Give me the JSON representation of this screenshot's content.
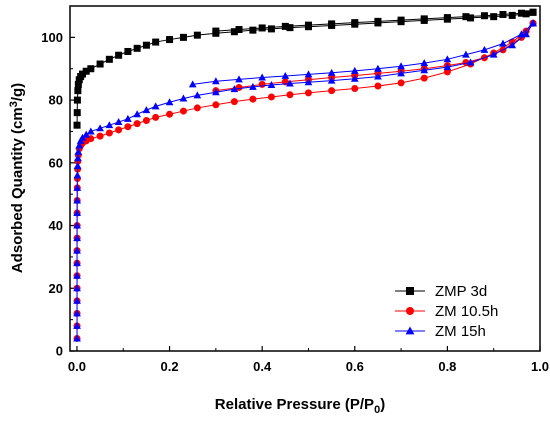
{
  "chart_data": {
    "type": "scatter",
    "title": "",
    "xlabel": "Relative Pressure (P/P",
    "xlabel_sub": "0",
    "xlabel_end": ")",
    "ylabel": "Adsorbed Quantity (cm",
    "ylabel_sup": "3",
    "ylabel_end": "/g)",
    "xlim": [
      -0.015,
      1.0
    ],
    "ylim": [
      0,
      110
    ],
    "xticks": [
      0.0,
      0.2,
      0.4,
      0.6,
      0.8,
      1.0
    ],
    "xtick_labels": [
      "0.0",
      "0.2",
      "0.4",
      "0.6",
      "0.8",
      "1.0"
    ],
    "yticks": [
      0,
      20,
      40,
      60,
      80,
      100
    ],
    "ytick_labels": [
      "0",
      "20",
      "40",
      "60",
      "80",
      "100"
    ],
    "grid": false,
    "legend_position": "bottom-right",
    "series": [
      {
        "name": "ZMP 3d",
        "color": "#000000",
        "marker": "square",
        "adsorption": [
          [
            0.0002,
            72
          ],
          [
            0.0006,
            76
          ],
          [
            0.001,
            80
          ],
          [
            0.002,
            83
          ],
          [
            0.003,
            85
          ],
          [
            0.005,
            86.5
          ],
          [
            0.008,
            87.5
          ],
          [
            0.012,
            88.3
          ],
          [
            0.02,
            89.2
          ],
          [
            0.03,
            90
          ],
          [
            0.05,
            91.5
          ],
          [
            0.07,
            93
          ],
          [
            0.09,
            94.3
          ],
          [
            0.11,
            95.5
          ],
          [
            0.13,
            96.5
          ],
          [
            0.15,
            97.5
          ],
          [
            0.17,
            98.5
          ],
          [
            0.2,
            99.3
          ],
          [
            0.23,
            100
          ],
          [
            0.26,
            100.7
          ],
          [
            0.3,
            101.3
          ],
          [
            0.34,
            101.8
          ],
          [
            0.38,
            102.3
          ],
          [
            0.42,
            102.7
          ],
          [
            0.46,
            103.1
          ],
          [
            0.5,
            103.4
          ],
          [
            0.55,
            103.8
          ],
          [
            0.6,
            104.2
          ],
          [
            0.65,
            104.6
          ],
          [
            0.7,
            105
          ],
          [
            0.75,
            105.4
          ],
          [
            0.8,
            105.8
          ],
          [
            0.85,
            106.2
          ],
          [
            0.9,
            106.6
          ],
          [
            0.94,
            107
          ],
          [
            0.97,
            107.5
          ],
          [
            0.985,
            108
          ]
        ],
        "desorption": [
          [
            0.985,
            108
          ],
          [
            0.96,
            107.7
          ],
          [
            0.92,
            107.3
          ],
          [
            0.88,
            106.9
          ],
          [
            0.84,
            106.6
          ],
          [
            0.8,
            106.3
          ],
          [
            0.75,
            105.9
          ],
          [
            0.7,
            105.5
          ],
          [
            0.65,
            105.1
          ],
          [
            0.6,
            104.7
          ],
          [
            0.55,
            104.3
          ],
          [
            0.5,
            103.9
          ],
          [
            0.45,
            103.5
          ],
          [
            0.4,
            103
          ],
          [
            0.35,
            102.5
          ],
          [
            0.3,
            102
          ]
        ]
      },
      {
        "name": "ZM 10.5h",
        "color": "#ff0000",
        "marker": "circle",
        "adsorption": [
          [
            0.0002,
            4
          ],
          [
            0.0002,
            8
          ],
          [
            0.0002,
            12
          ],
          [
            0.0002,
            16
          ],
          [
            0.0002,
            20
          ],
          [
            0.0002,
            24
          ],
          [
            0.0002,
            28
          ],
          [
            0.0002,
            32
          ],
          [
            0.0003,
            36
          ],
          [
            0.0003,
            40
          ],
          [
            0.0004,
            44
          ],
          [
            0.0005,
            48
          ],
          [
            0.0007,
            52
          ],
          [
            0.001,
            55
          ],
          [
            0.0015,
            58
          ],
          [
            0.002,
            60.5
          ],
          [
            0.003,
            62.5
          ],
          [
            0.005,
            64.5
          ],
          [
            0.008,
            65.5
          ],
          [
            0.012,
            66.3
          ],
          [
            0.02,
            67
          ],
          [
            0.03,
            67.7
          ],
          [
            0.05,
            68.5
          ],
          [
            0.07,
            69.5
          ],
          [
            0.09,
            70.5
          ],
          [
            0.11,
            71.5
          ],
          [
            0.13,
            72.5
          ],
          [
            0.15,
            73.5
          ],
          [
            0.17,
            74.5
          ],
          [
            0.2,
            75.5
          ],
          [
            0.23,
            76.5
          ],
          [
            0.26,
            77.5
          ],
          [
            0.3,
            78.5
          ],
          [
            0.34,
            79.5
          ],
          [
            0.38,
            80.3
          ],
          [
            0.42,
            81
          ],
          [
            0.46,
            81.7
          ],
          [
            0.5,
            82.3
          ],
          [
            0.55,
            83
          ],
          [
            0.6,
            83.7
          ],
          [
            0.65,
            84.5
          ],
          [
            0.7,
            85.5
          ],
          [
            0.75,
            87
          ],
          [
            0.8,
            89
          ],
          [
            0.85,
            91.5
          ],
          [
            0.9,
            95
          ],
          [
            0.94,
            98.5
          ],
          [
            0.97,
            102
          ],
          [
            0.985,
            104.5
          ]
        ],
        "desorption": [
          [
            0.985,
            104.5
          ],
          [
            0.96,
            100
          ],
          [
            0.92,
            96
          ],
          [
            0.88,
            93.5
          ],
          [
            0.84,
            92
          ],
          [
            0.8,
            91
          ],
          [
            0.75,
            90
          ],
          [
            0.7,
            89.2
          ],
          [
            0.65,
            88.5
          ],
          [
            0.6,
            87.8
          ],
          [
            0.55,
            87.2
          ],
          [
            0.5,
            86.5
          ],
          [
            0.45,
            85.8
          ],
          [
            0.4,
            85
          ],
          [
            0.35,
            84
          ],
          [
            0.3,
            83
          ]
        ]
      },
      {
        "name": "ZM 15h",
        "color": "#0000ff",
        "marker": "triangle",
        "adsorption": [
          [
            0.0002,
            4
          ],
          [
            0.0002,
            8
          ],
          [
            0.0002,
            12
          ],
          [
            0.0002,
            16
          ],
          [
            0.0002,
            20
          ],
          [
            0.0002,
            24
          ],
          [
            0.0002,
            28
          ],
          [
            0.0002,
            32
          ],
          [
            0.0003,
            36
          ],
          [
            0.0003,
            40
          ],
          [
            0.0004,
            44
          ],
          [
            0.0005,
            48
          ],
          [
            0.0007,
            52
          ],
          [
            0.001,
            56
          ],
          [
            0.0015,
            59
          ],
          [
            0.002,
            61.5
          ],
          [
            0.003,
            63.5
          ],
          [
            0.005,
            65.5
          ],
          [
            0.008,
            67
          ],
          [
            0.012,
            68
          ],
          [
            0.02,
            69
          ],
          [
            0.03,
            70
          ],
          [
            0.05,
            71
          ],
          [
            0.07,
            72
          ],
          [
            0.09,
            73
          ],
          [
            0.11,
            74
          ],
          [
            0.13,
            75.5
          ],
          [
            0.15,
            76.8
          ],
          [
            0.17,
            78
          ],
          [
            0.2,
            79.3
          ],
          [
            0.23,
            80.5
          ],
          [
            0.26,
            81.5
          ],
          [
            0.3,
            82.5
          ],
          [
            0.34,
            83.5
          ],
          [
            0.38,
            84.2
          ],
          [
            0.42,
            84.8
          ],
          [
            0.46,
            85.3
          ],
          [
            0.5,
            85.7
          ],
          [
            0.55,
            86.2
          ],
          [
            0.6,
            86.8
          ],
          [
            0.65,
            87.5
          ],
          [
            0.7,
            88.5
          ],
          [
            0.75,
            89.5
          ],
          [
            0.8,
            90.5
          ],
          [
            0.85,
            92
          ],
          [
            0.9,
            94.5
          ],
          [
            0.94,
            97.5
          ],
          [
            0.97,
            101
          ],
          [
            0.985,
            104.5
          ]
        ],
        "desorption": [
          [
            0.985,
            104.5
          ],
          [
            0.96,
            101
          ],
          [
            0.92,
            98
          ],
          [
            0.88,
            96
          ],
          [
            0.84,
            94.5
          ],
          [
            0.8,
            93
          ],
          [
            0.75,
            91.8
          ],
          [
            0.7,
            90.8
          ],
          [
            0.65,
            90
          ],
          [
            0.6,
            89.3
          ],
          [
            0.55,
            88.7
          ],
          [
            0.5,
            88.2
          ],
          [
            0.45,
            87.7
          ],
          [
            0.4,
            87.2
          ],
          [
            0.35,
            86.6
          ],
          [
            0.3,
            86
          ],
          [
            0.25,
            85
          ]
        ]
      }
    ]
  }
}
